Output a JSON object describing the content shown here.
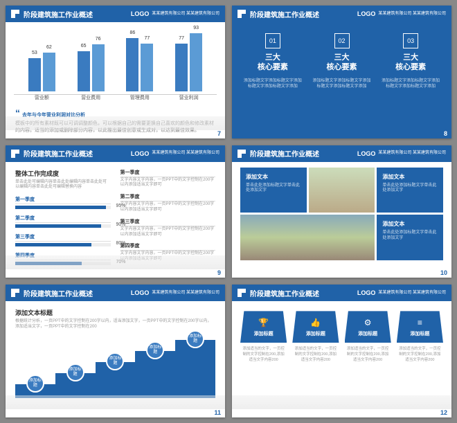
{
  "header": {
    "title": "阶段建筑施工作业概述",
    "logo": "LOGO",
    "sub": "某某建筑有限公司\n某某建筑有限公司"
  },
  "slide7": {
    "num": "7",
    "chart": {
      "type": "bar",
      "groups": [
        {
          "label": "营业额",
          "bars": [
            {
              "v": 53,
              "c": "#3a7bc0"
            },
            {
              "v": 62,
              "c": "#5b9bd5"
            }
          ]
        },
        {
          "label": "营业费用",
          "bars": [
            {
              "v": 65,
              "c": "#3a7bc0"
            },
            {
              "v": 76,
              "c": "#5b9bd5"
            }
          ]
        },
        {
          "label": "管理费用",
          "bars": [
            {
              "v": 86,
              "c": "#3a7bc0"
            },
            {
              "v": 77,
              "c": "#5b9bd5"
            }
          ]
        },
        {
          "label": "营业利润",
          "bars": [
            {
              "v": 77,
              "c": "#3a7bc0"
            },
            {
              "v": 93,
              "c": "#5b9bd5"
            }
          ]
        }
      ],
      "ymax": 100
    },
    "note_title": "去年与今年营业利润对比分析",
    "note_body": "模板中的所有素材既可以可调调整颜色，可以根据自己的需要更换自己喜欢的颜色和修改素材的内容。适当的添加或删除部分内容，以此推出最佳创意或生成对，以达到最佳效果。"
  },
  "slide8": {
    "num": "8",
    "cards": [
      {
        "n": "01",
        "t1": "三大",
        "t2": "核心要素",
        "d": "添加标题文字添加标题文字添加标题文字添加标题文字添加"
      },
      {
        "n": "02",
        "t1": "三大",
        "t2": "核心要素",
        "d": "添加标题文字添加标题文字添加标题文字添加标题文字添加"
      },
      {
        "n": "03",
        "t1": "三大",
        "t2": "核心要素",
        "d": "添加标题文字添加标题文字添加标题文字添加标题文字添加"
      }
    ]
  },
  "slide9": {
    "num": "9",
    "title": "整体工作完成度",
    "desc": "单击此处可编辑内容单击此处编辑内容单击此处可以编辑内容单击此处可编辑替换内容",
    "bars": [
      {
        "l": "第一季度",
        "v": 95
      },
      {
        "l": "第二季度",
        "v": 90
      },
      {
        "l": "第三季度",
        "v": 80
      },
      {
        "l": "第四季度",
        "v": 70
      }
    ],
    "quarters": [
      {
        "t": "第一季度",
        "d": "文字内容文字内容，一页PPT中的文字控制在200字以内添加适当文字即可"
      },
      {
        "t": "第二季度",
        "d": "文字内容文字内容，一页PPT中的文字控制在200字以内添加适当文字即可"
      },
      {
        "t": "第三季度",
        "d": "文字内容文字内容，一页PPT中的文字控制在200字以内添加适当文字即可"
      },
      {
        "t": "第四季度",
        "d": "文字内容文字内容，一页PPT中的文字控制在200字以内添加适当文字即可"
      }
    ]
  },
  "slide10": {
    "num": "10",
    "box_title": "添加文本",
    "box_desc": "单击此处添加标题文字单击此处添加文字"
  },
  "slide11": {
    "num": "11",
    "title": "添加文本标题",
    "desc": "根据统计分析，一页PPT中的文字控制在200字以内，适当添加文字，一页PPT中的文字控制在200字以内，添加适当文字，一页PPT中的文字控制在200",
    "step_label": "添加标题"
  },
  "slide12": {
    "num": "12",
    "cards": [
      {
        "icon": "🏆",
        "t": "添加标题"
      },
      {
        "icon": "👍",
        "t": "添加标题"
      },
      {
        "icon": "⚙",
        "t": "添加标题"
      },
      {
        "icon": "≡",
        "t": "添加标题"
      }
    ],
    "card_desc": "添加适当的文字，一页控制的文字控制在200,添加适当文字内容200"
  }
}
